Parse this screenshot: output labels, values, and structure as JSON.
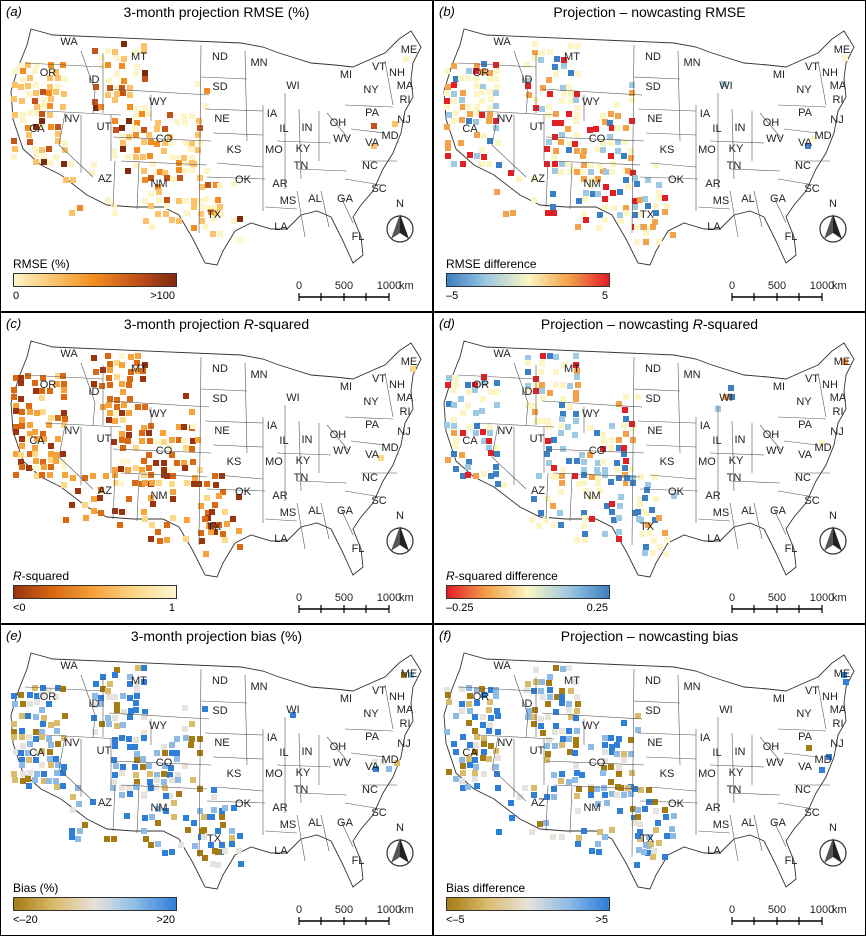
{
  "states": [
    "WA",
    "OR",
    "ID",
    "MT",
    "ND",
    "MN",
    "WI",
    "MI",
    "ME",
    "VT",
    "NH",
    "MA",
    "RI",
    "NY",
    "CA",
    "NV",
    "UT",
    "WY",
    "SD",
    "NE",
    "IA",
    "IL",
    "IN",
    "OH",
    "PA",
    "NJ",
    "CO",
    "KS",
    "MO",
    "KY",
    "WV",
    "VA",
    "MD",
    "TN",
    "NC",
    "AZ",
    "NM",
    "OK",
    "AR",
    "SC",
    "MS",
    "AL",
    "GA",
    "TX",
    "LA",
    "FL"
  ],
  "compass_label": "N",
  "scale_bar": {
    "ticks": [
      "0",
      "500",
      "1000"
    ],
    "unit": "km"
  },
  "panels": [
    {
      "id": "a",
      "letter": "(a)",
      "title": "3-month projection RMSE (%)",
      "legend_title": "RMSE (%)",
      "legend_min": "0",
      "legend_max": ">100",
      "palette": [
        "#fdf4c7",
        "#fbc26a",
        "#f28c1e",
        "#c4531a",
        "#7e2a0c"
      ],
      "pattern": "rmse"
    },
    {
      "id": "b",
      "letter": "(b)",
      "title": "Projection – nowcasting RMSE",
      "legend_title": "RMSE difference",
      "legend_min": "–5",
      "legend_max": "5",
      "palette": [
        "#3b7fc4",
        "#9ec9e2",
        "#fbf6c4",
        "#f4a24a",
        "#e31f26"
      ],
      "pattern": "diff"
    },
    {
      "id": "c",
      "letter": "(c)",
      "title": "3-month projection R-squared",
      "title_italic": "R",
      "legend_title": "R-squared",
      "legend_min": "<0",
      "legend_max": "1",
      "palette": [
        "#9a3510",
        "#d96a13",
        "#f6a33c",
        "#fbd989",
        "#fdf6cf"
      ],
      "pattern": "rsq"
    },
    {
      "id": "d",
      "letter": "(d)",
      "title": "Projection – nowcasting R-squared",
      "title_italic": "R",
      "legend_title": "R-squared difference",
      "legend_min": "–0.25",
      "legend_max": "0.25",
      "palette": [
        "#e31f26",
        "#f4a24a",
        "#fbf6c4",
        "#9ec9e2",
        "#3b7fc4"
      ],
      "pattern": "diff"
    },
    {
      "id": "e",
      "letter": "(e)",
      "title": "3-month projection bias (%)",
      "legend_title": "Bias (%)",
      "legend_min": "<–20",
      "legend_max": ">20",
      "palette": [
        "#a67c12",
        "#d9bb6c",
        "#e6e3dc",
        "#8dbbe6",
        "#2f7ed8"
      ],
      "pattern": "bias"
    },
    {
      "id": "f",
      "letter": "(f)",
      "title": "Projection – nowcasting bias",
      "legend_title": "Bias difference",
      "legend_min": "<–5",
      "legend_max": ">5",
      "palette": [
        "#a67c12",
        "#d9bb6c",
        "#e6e3dc",
        "#8dbbe6",
        "#2f7ed8"
      ],
      "pattern": "bias"
    }
  ]
}
